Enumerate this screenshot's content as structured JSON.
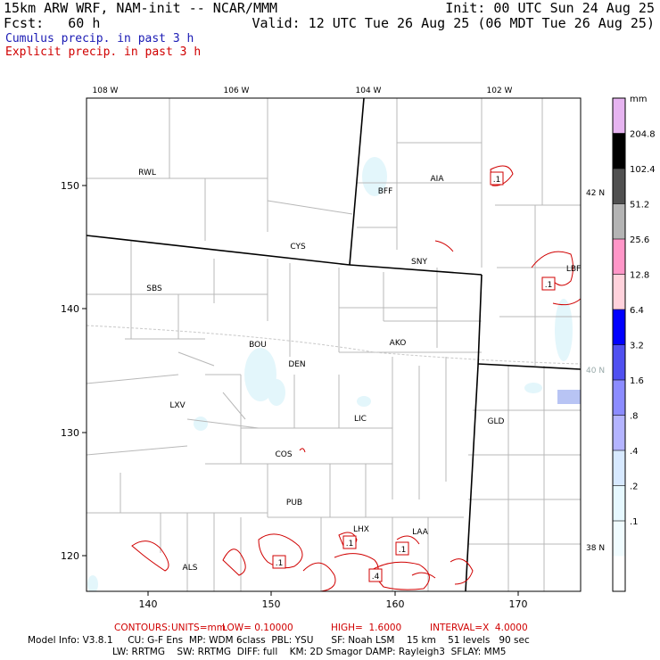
{
  "header": {
    "model_title": "15km ARW WRF, NAM-init -- NCAR/MMM",
    "init": "Init: 00 UTC Sun 24 Aug 25",
    "forecast": "Fcst:   60 h",
    "valid": "Valid: 12 UTC Tue 26 Aug 25 (06 MDT Tue 26 Aug 25)",
    "field1": "Cumulus precip. in past 3 h",
    "field2": "Explicit precip. in past 3 h",
    "field1_color": "#1a1ab4",
    "field2_color": "#d00000"
  },
  "map": {
    "top_lon_labels": [
      "108 W",
      "106 W",
      "104 W",
      "102 W"
    ],
    "right_lat_labels": [
      "42 N",
      "40 N",
      "38 N"
    ],
    "left_grid_labels": [
      "150",
      "140",
      "130",
      "120"
    ],
    "bottom_grid_labels": [
      "140",
      "150",
      "160",
      "170"
    ],
    "stations": [
      "RWL",
      "BFF",
      "AIA",
      "CYS",
      "SNY",
      "LBF",
      "SBS",
      "BOU",
      "DEN",
      "AKO",
      "LXV",
      "LIC",
      "GLD",
      "COS",
      "PUB",
      "LHX",
      "LAA",
      "ALS"
    ],
    "contour_labels": [
      ".1",
      ".1",
      ".1",
      ".1",
      ".1",
      ".4"
    ]
  },
  "colorbar": {
    "unit": "mm",
    "labels": [
      "204.8",
      "102.4",
      "51.2",
      "25.6",
      "12.8",
      "6.4",
      "3.2",
      "1.6",
      ".8",
      ".4",
      ".2",
      ".1"
    ],
    "colors": [
      "#e6b4f0",
      "#000000",
      "#505050",
      "#b4b4b4",
      "#ff96c8",
      "#ffd2dc",
      "#0000ff",
      "#5050f0",
      "#8c8cff",
      "#b4b4ff",
      "#d7e9ff",
      "#e6f8ff",
      "#f0fcff",
      "#ffffff"
    ]
  },
  "footer": {
    "contours_label": "CONTOURS:",
    "units": "UNITS=mm",
    "low": "LOW= 0.10000",
    "high": "HIGH=  1.6000",
    "interval": "INTERVAL=X  4.0000",
    "model_info_1": "Model Info: V3.8.1     CU: G-F Ens  MP: WDM 6class  PBL: YSU      SF: Noah LSM    15 km    51 levels   90 sec",
    "model_info_2": "LW: RRTMG    SW: RRTMG  DIFF: full    KM: 2D Smagor DAMP: Rayleigh3  SFLAY: MM5"
  }
}
